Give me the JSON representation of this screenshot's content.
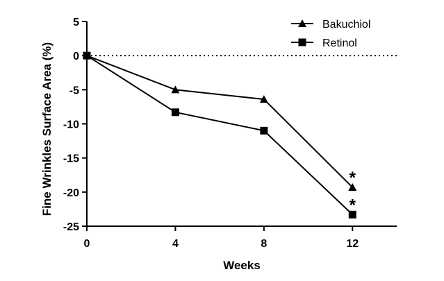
{
  "chart_data": {
    "type": "line",
    "title": "",
    "xlabel": "Weeks",
    "ylabel": "Fine Wrinkles Surface Area (%)",
    "x": [
      0,
      4,
      8,
      12
    ],
    "x_ticks": [
      "0",
      "4",
      "8",
      "12"
    ],
    "y_ticks": [
      "5",
      "0",
      "-5",
      "-10",
      "-15",
      "-20",
      "-25"
    ],
    "xlim": [
      0,
      14
    ],
    "ylim": [
      -25,
      5
    ],
    "reference_line": {
      "y": 0,
      "style": "dotted"
    },
    "grid": false,
    "legend_position": "top-right",
    "series": [
      {
        "name": "Bakuchiol",
        "marker": "triangle",
        "values": [
          0,
          -5.0,
          -6.4,
          -19.3
        ],
        "annotations": [
          "",
          "",
          "",
          "*"
        ]
      },
      {
        "name": "Retinol",
        "marker": "square",
        "values": [
          0,
          -8.3,
          -11.0,
          -23.3
        ],
        "annotations": [
          "",
          "",
          "",
          "*"
        ]
      }
    ],
    "colors": {
      "line": "#000000",
      "background": "#ffffff"
    }
  }
}
